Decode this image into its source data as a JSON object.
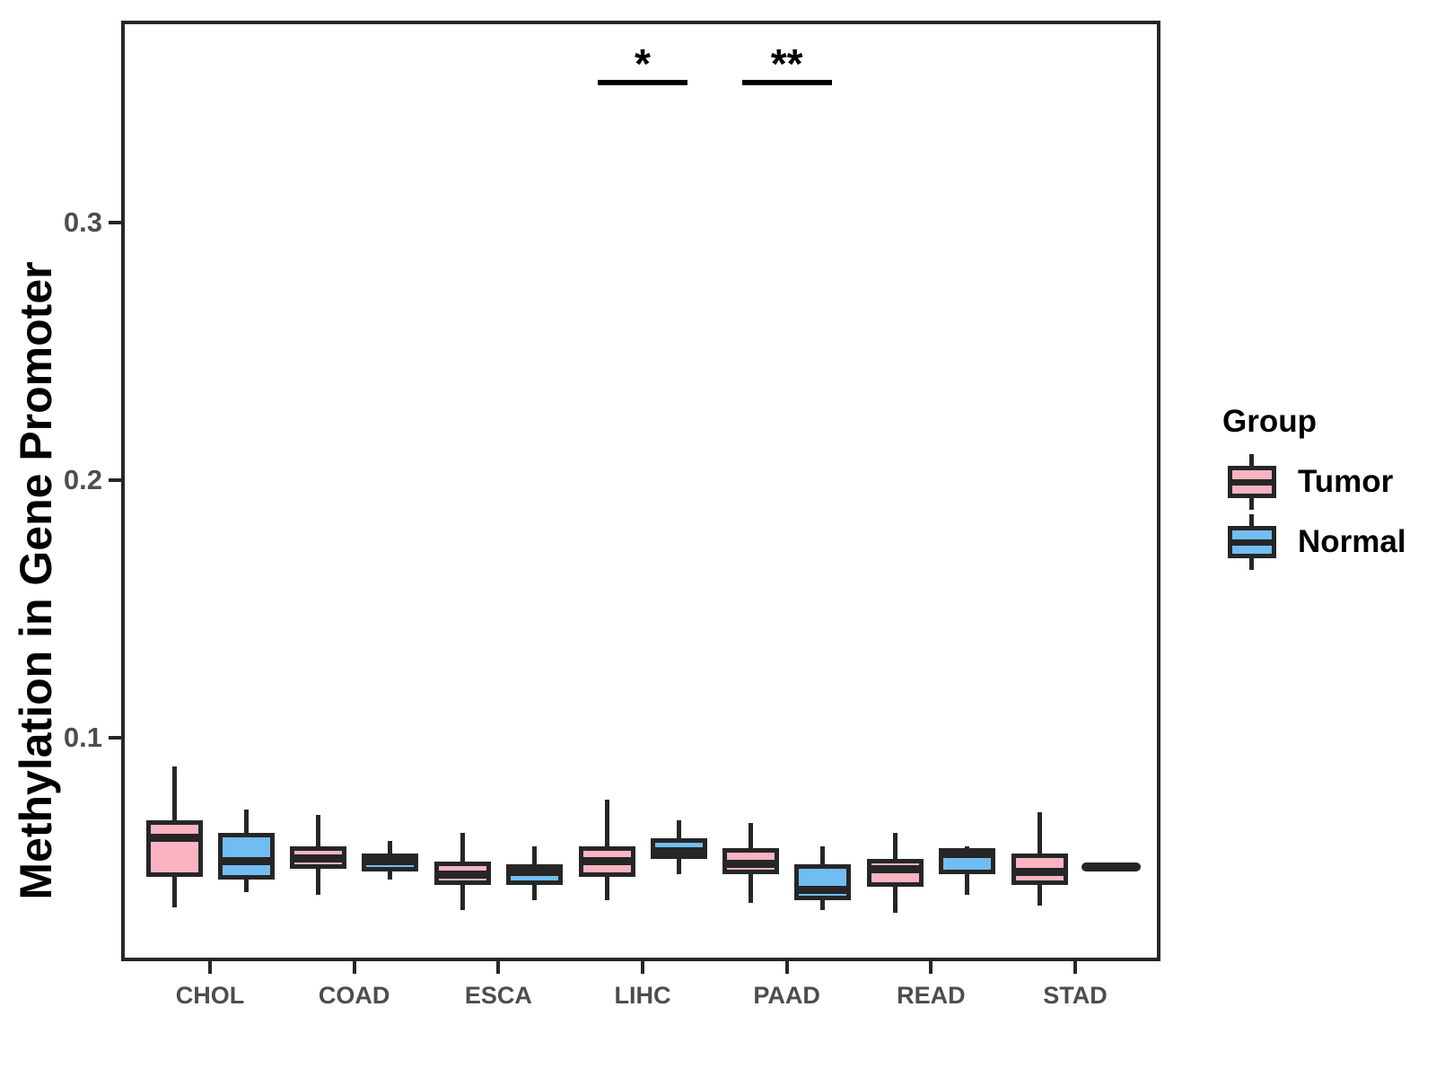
{
  "chart_data": {
    "type": "grouped_boxplot",
    "title": "",
    "xlabel": "",
    "ylabel": "Methylation in Gene Promoter",
    "categories": [
      "CHOL",
      "COAD",
      "ESCA",
      "LIHC",
      "PAAD",
      "READ",
      "STAD"
    ],
    "y_ticks": [
      {
        "label": "0.1",
        "value": 0.1
      },
      {
        "label": "0.2",
        "value": 0.2
      },
      {
        "label": "0.3",
        "value": 0.3
      }
    ],
    "ylim": [
      0.013,
      0.378
    ],
    "grid": false,
    "legend_position": "right",
    "legend": {
      "title": "Group",
      "entries": [
        {
          "label": "Tumor",
          "color": "#FAB3C2"
        },
        {
          "label": "Normal",
          "color": "#71BDF2"
        }
      ]
    },
    "series": [
      {
        "name": "Tumor",
        "color": "#FAB3C2",
        "boxes": [
          {
            "category": "CHOL",
            "low": 0.034,
            "q1": 0.046,
            "median": 0.061,
            "q3": 0.068,
            "high": 0.089
          },
          {
            "category": "COAD",
            "low": 0.039,
            "q1": 0.049,
            "median": 0.053,
            "q3": 0.058,
            "high": 0.07
          },
          {
            "category": "ESCA",
            "low": 0.033,
            "q1": 0.043,
            "median": 0.047,
            "q3": 0.052,
            "high": 0.063
          },
          {
            "category": "LIHC",
            "low": 0.037,
            "q1": 0.046,
            "median": 0.052,
            "q3": 0.058,
            "high": 0.076
          },
          {
            "category": "PAAD",
            "low": 0.036,
            "q1": 0.047,
            "median": 0.051,
            "q3": 0.057,
            "high": 0.067
          },
          {
            "category": "READ",
            "low": 0.032,
            "q1": 0.042,
            "median": 0.049,
            "q3": 0.053,
            "high": 0.063
          },
          {
            "category": "STAD",
            "low": 0.035,
            "q1": 0.043,
            "median": 0.048,
            "q3": 0.055,
            "high": 0.071
          }
        ]
      },
      {
        "name": "Normal",
        "color": "#71BDF2",
        "boxes": [
          {
            "category": "CHOL",
            "low": 0.04,
            "q1": 0.045,
            "median": 0.052,
            "q3": 0.063,
            "high": 0.072
          },
          {
            "category": "COAD",
            "low": 0.045,
            "q1": 0.048,
            "median": 0.052,
            "q3": 0.055,
            "high": 0.06
          },
          {
            "category": "ESCA",
            "low": 0.037,
            "q1": 0.043,
            "median": 0.048,
            "q3": 0.051,
            "high": 0.058
          },
          {
            "category": "LIHC",
            "low": 0.047,
            "q1": 0.053,
            "median": 0.056,
            "q3": 0.061,
            "high": 0.068
          },
          {
            "category": "PAAD",
            "low": 0.033,
            "q1": 0.037,
            "median": 0.041,
            "q3": 0.051,
            "high": 0.058
          },
          {
            "category": "READ",
            "low": 0.039,
            "q1": 0.047,
            "median": 0.055,
            "q3": 0.057,
            "high": 0.058
          },
          {
            "category": "STAD",
            "low": 0.05,
            "q1": 0.05,
            "median": 0.05,
            "q3": 0.05,
            "high": 0.05
          }
        ]
      }
    ],
    "annotations": [
      {
        "category": "LIHC",
        "label": "*"
      },
      {
        "category": "PAAD",
        "label": "**"
      }
    ],
    "colors": {
      "box_border": "#262626",
      "axis": "#262626",
      "tick_label": "#4D4D4D",
      "annotation": "#000000"
    }
  }
}
